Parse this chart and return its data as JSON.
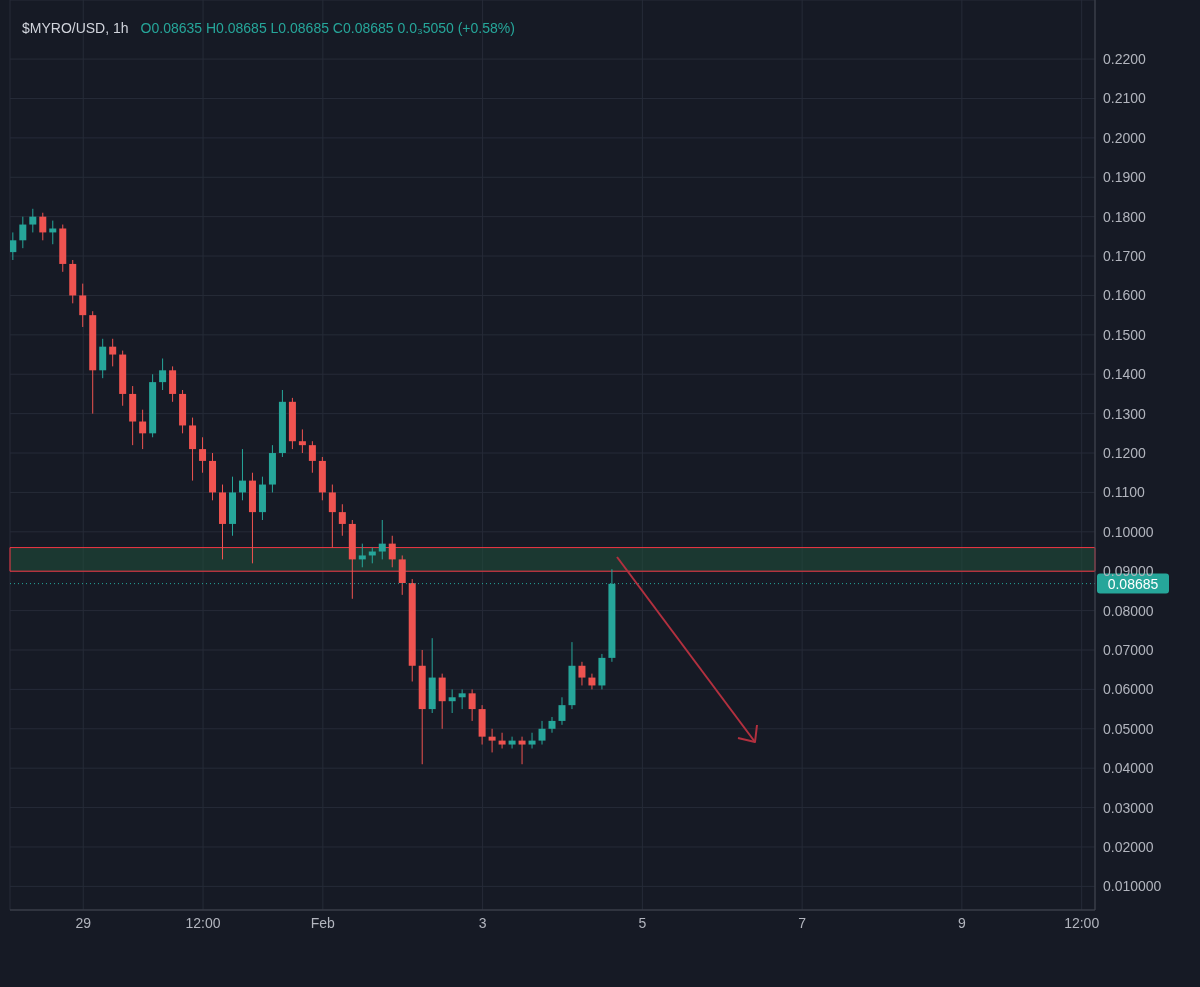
{
  "chart_data": {
    "type": "candlestick",
    "title": "$MYRO/USD, 1h",
    "subtitle": "O0.08635 H0.08685 L0.08685 C0.08685 0.0₃5050 (+0.58%)",
    "x": [
      "--01-28T03:00",
      "--01-28T06:00",
      "--01-28T09:00",
      "--01-28T12:00",
      "--01-28T15:00",
      "--01-28T18:00",
      "--01-28T21:00",
      "--01-29T00:00",
      "--01-29T03:00",
      "--01-29T06:00",
      "--01-29T09:00",
      "--01-29T12:00",
      "--01-29T15:00",
      "--01-29T18:00",
      "--01-29T21:00",
      "--01-30T00:00",
      "--01-30T03:00",
      "--01-30T06:00",
      "--01-30T09:00",
      "--01-30T12:00",
      "--01-30T15:00",
      "--01-30T18:00",
      "--01-30T21:00",
      "--01-31T00:00",
      "--01-31T03:00",
      "--01-31T06:00",
      "--01-31T09:00",
      "--01-31T12:00",
      "--01-31T15:00",
      "--01-31T18:00",
      "--01-31T21:00",
      "--02-01T00:00",
      "--02-01T03:00",
      "--02-01T06:00",
      "--02-01T09:00",
      "--02-01T12:00",
      "--02-01T15:00",
      "--02-01T18:00",
      "--02-01T21:00",
      "--02-02T00:00",
      "--02-02T03:00",
      "--02-02T06:00",
      "--02-02T09:00",
      "--02-02T12:00",
      "--02-02T15:00",
      "--02-02T18:00",
      "--02-02T21:00",
      "--02-03T00:00",
      "--02-03T03:00",
      "--02-03T06:00",
      "--02-03T09:00",
      "--02-03T12:00",
      "--02-03T15:00",
      "--02-03T18:00",
      "--02-03T21:00",
      "--02-04T00:00",
      "--02-04T03:00",
      "--02-04T06:00",
      "--02-04T09:00",
      "--02-04T12:00",
      "--02-04T15:00"
    ],
    "ohlc": [
      [
        0.171,
        0.176,
        0.169,
        0.174
      ],
      [
        0.174,
        0.18,
        0.172,
        0.178
      ],
      [
        0.178,
        0.182,
        0.176,
        0.18
      ],
      [
        0.18,
        0.181,
        0.174,
        0.176
      ],
      [
        0.176,
        0.179,
        0.173,
        0.177
      ],
      [
        0.177,
        0.178,
        0.166,
        0.168
      ],
      [
        0.168,
        0.169,
        0.158,
        0.16
      ],
      [
        0.16,
        0.163,
        0.152,
        0.155
      ],
      [
        0.155,
        0.156,
        0.13,
        0.141
      ],
      [
        0.141,
        0.149,
        0.139,
        0.147
      ],
      [
        0.147,
        0.149,
        0.142,
        0.145
      ],
      [
        0.145,
        0.146,
        0.132,
        0.135
      ],
      [
        0.135,
        0.137,
        0.122,
        0.128
      ],
      [
        0.128,
        0.131,
        0.121,
        0.125
      ],
      [
        0.125,
        0.14,
        0.124,
        0.138
      ],
      [
        0.138,
        0.144,
        0.136,
        0.141
      ],
      [
        0.141,
        0.142,
        0.133,
        0.135
      ],
      [
        0.135,
        0.136,
        0.125,
        0.127
      ],
      [
        0.127,
        0.129,
        0.113,
        0.121
      ],
      [
        0.121,
        0.124,
        0.115,
        0.118
      ],
      [
        0.118,
        0.12,
        0.108,
        0.11
      ],
      [
        0.11,
        0.112,
        0.093,
        0.102
      ],
      [
        0.102,
        0.114,
        0.099,
        0.11
      ],
      [
        0.11,
        0.121,
        0.108,
        0.113
      ],
      [
        0.113,
        0.115,
        0.092,
        0.105
      ],
      [
        0.105,
        0.114,
        0.103,
        0.112
      ],
      [
        0.112,
        0.122,
        0.11,
        0.12
      ],
      [
        0.12,
        0.136,
        0.119,
        0.133
      ],
      [
        0.133,
        0.134,
        0.121,
        0.123
      ],
      [
        0.123,
        0.126,
        0.12,
        0.122
      ],
      [
        0.122,
        0.123,
        0.115,
        0.118
      ],
      [
        0.118,
        0.119,
        0.108,
        0.11
      ],
      [
        0.11,
        0.112,
        0.096,
        0.105
      ],
      [
        0.105,
        0.107,
        0.099,
        0.102
      ],
      [
        0.102,
        0.103,
        0.083,
        0.093
      ],
      [
        0.093,
        0.097,
        0.091,
        0.094
      ],
      [
        0.094,
        0.096,
        0.092,
        0.095
      ],
      [
        0.095,
        0.103,
        0.093,
        0.097
      ],
      [
        0.097,
        0.099,
        0.091,
        0.093
      ],
      [
        0.093,
        0.094,
        0.084,
        0.087
      ],
      [
        0.087,
        0.088,
        0.062,
        0.066
      ],
      [
        0.066,
        0.07,
        0.041,
        0.055
      ],
      [
        0.055,
        0.073,
        0.054,
        0.063
      ],
      [
        0.063,
        0.064,
        0.05,
        0.057
      ],
      [
        0.057,
        0.06,
        0.054,
        0.058
      ],
      [
        0.058,
        0.06,
        0.055,
        0.059
      ],
      [
        0.059,
        0.06,
        0.052,
        0.055
      ],
      [
        0.055,
        0.056,
        0.046,
        0.048
      ],
      [
        0.048,
        0.05,
        0.044,
        0.047
      ],
      [
        0.047,
        0.049,
        0.045,
        0.046
      ],
      [
        0.046,
        0.048,
        0.045,
        0.047
      ],
      [
        0.047,
        0.048,
        0.041,
        0.046
      ],
      [
        0.046,
        0.049,
        0.045,
        0.047
      ],
      [
        0.047,
        0.052,
        0.046,
        0.05
      ],
      [
        0.05,
        0.053,
        0.049,
        0.052
      ],
      [
        0.052,
        0.058,
        0.051,
        0.056
      ],
      [
        0.056,
        0.072,
        0.055,
        0.066
      ],
      [
        0.066,
        0.067,
        0.061,
        0.063
      ],
      [
        0.063,
        0.064,
        0.06,
        0.061
      ],
      [
        0.061,
        0.069,
        0.06,
        0.068
      ],
      [
        0.068,
        0.0905,
        0.067,
        0.0868
      ]
    ],
    "colors": [
      "#26a69a",
      "#26a69a",
      "#26a69a",
      "#ef5350",
      "#26a69a",
      "#ef5350",
      "#ef5350",
      "#ef5350",
      "#ef5350",
      "#26a69a",
      "#ef5350",
      "#ef5350",
      "#ef5350",
      "#ef5350",
      "#26a69a",
      "#26a69a",
      "#ef5350",
      "#ef5350",
      "#ef5350",
      "#ef5350",
      "#ef5350",
      "#ef5350",
      "#26a69a",
      "#26a69a",
      "#ef5350",
      "#26a69a",
      "#26a69a",
      "#26a69a",
      "#ef5350",
      "#ef5350",
      "#ef5350",
      "#ef5350",
      "#ef5350",
      "#ef5350",
      "#ef5350",
      "#26a69a",
      "#26a69a",
      "#26a69a",
      "#ef5350",
      "#ef5350",
      "#ef5350",
      "#ef5350",
      "#26a69a",
      "#ef5350",
      "#26a69a",
      "#26a69a",
      "#ef5350",
      "#ef5350",
      "#ef5350",
      "#ef5350",
      "#26a69a",
      "#ef5350",
      "#26a69a",
      "#26a69a",
      "#26a69a",
      "#26a69a",
      "#26a69a",
      "#ef5350",
      "#ef5350",
      "#26a69a",
      "#26a69a"
    ],
    "xlim": [
      "--01-28T02:00",
      "--02-10T16:00"
    ],
    "xticks": [
      {
        "value": "--01-29",
        "label": "29"
      },
      {
        "value": "--01-30T12:00",
        "label": "12:00"
      },
      {
        "value": "--02-01",
        "label": "Feb"
      },
      {
        "value": "--02-03",
        "label": "3"
      },
      {
        "value": "--02-05",
        "label": "5"
      },
      {
        "value": "--02-07",
        "label": "7"
      },
      {
        "value": "--02-09",
        "label": "9"
      },
      {
        "value": "--02-10T12:00",
        "label": "12:00"
      }
    ],
    "ylim": [
      0.004,
      0.235
    ],
    "yticks": [
      {
        "value": 0.01,
        "label": "0.010000"
      },
      {
        "value": 0.02,
        "label": "0.02000"
      },
      {
        "value": 0.03,
        "label": "0.03000"
      },
      {
        "value": 0.04,
        "label": "0.04000"
      },
      {
        "value": 0.05,
        "label": "0.05000"
      },
      {
        "value": 0.06,
        "label": "0.06000"
      },
      {
        "value": 0.07,
        "label": "0.07000"
      },
      {
        "value": 0.08,
        "label": "0.08000"
      },
      {
        "value": 0.09,
        "label": "0.09000"
      },
      {
        "value": 0.1,
        "label": "0.10000"
      },
      {
        "value": 0.11,
        "label": "0.1100"
      },
      {
        "value": 0.12,
        "label": "0.1200"
      },
      {
        "value": 0.13,
        "label": "0.1300"
      },
      {
        "value": 0.14,
        "label": "0.1400"
      },
      {
        "value": 0.15,
        "label": "0.1500"
      },
      {
        "value": 0.16,
        "label": "0.1600"
      },
      {
        "value": 0.17,
        "label": "0.1700"
      },
      {
        "value": 0.18,
        "label": "0.1800"
      },
      {
        "value": 0.19,
        "label": "0.1900"
      },
      {
        "value": 0.2,
        "label": "0.2000"
      },
      {
        "value": 0.21,
        "label": "0.2100"
      },
      {
        "value": 0.22,
        "label": "0.2200"
      }
    ],
    "bands": [
      {
        "axis": "y",
        "from": 0.09,
        "to": 0.096,
        "color": "#1f4d3a"
      }
    ],
    "ref_lines": [
      {
        "axis": "y",
        "value": 0.08685,
        "label": "0.08685",
        "color": "#26a69a",
        "line_style": "dotted"
      }
    ],
    "grid": true,
    "legend": false
  }
}
